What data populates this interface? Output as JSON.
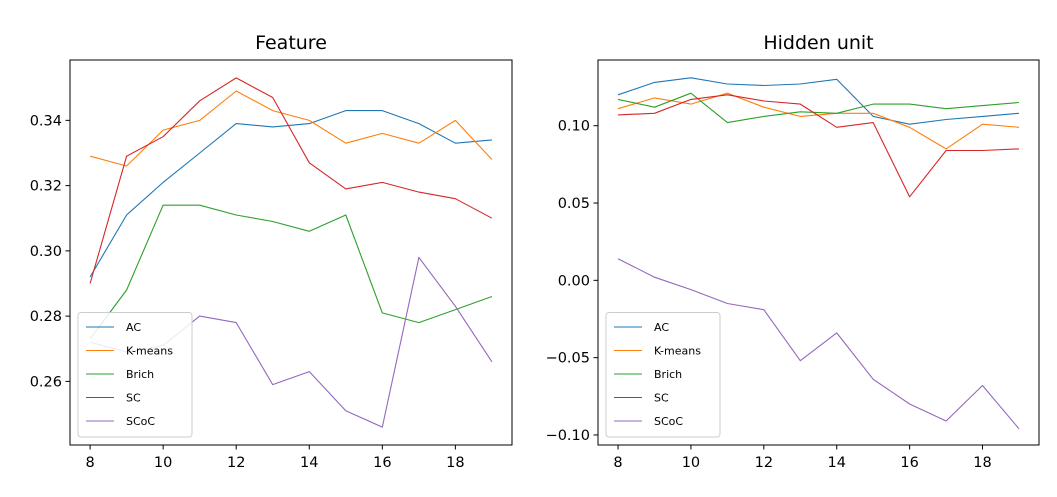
{
  "chart_data": [
    {
      "type": "line",
      "title": "Feature",
      "xlabel": "",
      "ylabel": "",
      "xlim": [
        7.45,
        19.55
      ],
      "ylim": [
        0.2405,
        0.3585
      ],
      "xticks": [
        8,
        10,
        12,
        14,
        16,
        18
      ],
      "xtick_labels": [
        "8",
        "10",
        "12",
        "14",
        "16",
        "18"
      ],
      "yticks": [
        0.26,
        0.28,
        0.3,
        0.32,
        0.34
      ],
      "ytick_labels": [
        "0.26",
        "0.28",
        "0.30",
        "0.32",
        "0.34"
      ],
      "grid": false,
      "legend_position": "lower-left",
      "x": [
        8,
        9,
        10,
        11,
        12,
        13,
        14,
        15,
        16,
        17,
        18,
        19
      ],
      "series": [
        {
          "name": "AC",
          "color": "#1f77b4",
          "values": [
            0.292,
            0.311,
            0.321,
            0.33,
            0.339,
            0.338,
            0.339,
            0.343,
            0.343,
            0.339,
            0.333,
            0.334
          ]
        },
        {
          "name": "K-means",
          "color": "#ff7f0e",
          "values": [
            0.329,
            0.326,
            0.337,
            0.34,
            0.349,
            0.343,
            0.34,
            0.333,
            0.336,
            0.333,
            0.34,
            0.328
          ]
        },
        {
          "name": "Brich",
          "color": "#2ca02c",
          "values": [
            0.273,
            0.288,
            0.314,
            0.314,
            0.311,
            0.309,
            0.306,
            0.311,
            0.281,
            0.278,
            0.282,
            0.286
          ]
        },
        {
          "name": "SC",
          "color": "#d62728",
          "values": [
            0.29,
            0.329,
            0.335,
            0.346,
            0.353,
            0.347,
            0.327,
            0.319,
            0.321,
            0.318,
            0.316,
            0.31
          ]
        },
        {
          "name": "SCoC",
          "color": "#9467bd",
          "values": [
            0.272,
            0.269,
            0.271,
            0.28,
            0.278,
            0.259,
            0.263,
            0.251,
            0.246,
            0.298,
            0.283,
            0.266
          ]
        }
      ]
    },
    {
      "type": "line",
      "title": "Hidden unit",
      "xlabel": "",
      "ylabel": "",
      "xlim": [
        7.45,
        19.55
      ],
      "ylim": [
        -0.1065,
        0.1425
      ],
      "xticks": [
        8,
        10,
        12,
        14,
        16,
        18
      ],
      "xtick_labels": [
        "8",
        "10",
        "12",
        "14",
        "16",
        "18"
      ],
      "yticks": [
        -0.1,
        -0.05,
        0.0,
        0.05,
        0.1
      ],
      "ytick_labels": [
        "−0.10",
        "−0.05",
        "0.00",
        "0.05",
        "0.10"
      ],
      "grid": false,
      "legend_position": "lower-left",
      "x": [
        8,
        9,
        10,
        11,
        12,
        13,
        14,
        15,
        16,
        17,
        18,
        19
      ],
      "series": [
        {
          "name": "AC",
          "color": "#1f77b4",
          "values": [
            0.12,
            0.128,
            0.131,
            0.127,
            0.126,
            0.127,
            0.13,
            0.106,
            0.101,
            0.104,
            0.106,
            0.108
          ]
        },
        {
          "name": "K-means",
          "color": "#ff7f0e",
          "values": [
            0.111,
            0.118,
            0.114,
            0.121,
            0.112,
            0.106,
            0.108,
            0.108,
            0.099,
            0.085,
            0.101,
            0.099
          ]
        },
        {
          "name": "Brich",
          "color": "#2ca02c",
          "values": [
            0.117,
            0.112,
            0.121,
            0.102,
            0.106,
            0.109,
            0.108,
            0.114,
            0.114,
            0.111,
            0.113,
            0.115
          ]
        },
        {
          "name": "SC",
          "color": "#d62728",
          "values": [
            0.107,
            0.108,
            0.117,
            0.12,
            0.116,
            0.114,
            0.099,
            0.102,
            0.054,
            0.084,
            0.084,
            0.085
          ]
        },
        {
          "name": "SCoC",
          "color": "#9467bd",
          "values": [
            0.014,
            0.002,
            -0.006,
            -0.015,
            -0.019,
            -0.052,
            -0.034,
            -0.064,
            -0.08,
            -0.091,
            -0.068,
            -0.096
          ]
        }
      ]
    }
  ]
}
